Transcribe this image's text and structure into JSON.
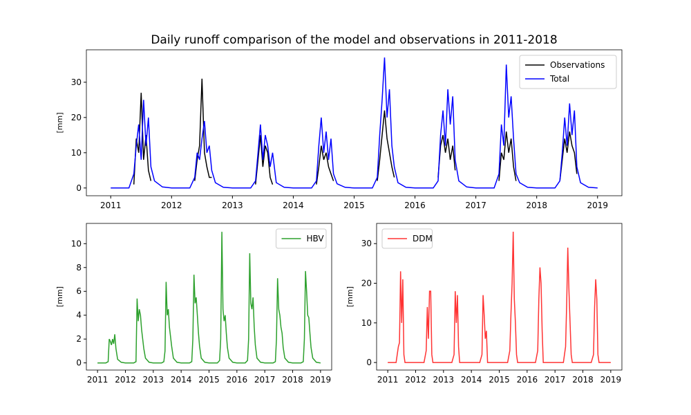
{
  "chart_data": [
    {
      "type": "line",
      "title": "Daily runoff comparison of the model and observations in 2011-2018",
      "ylabel": "[mm]",
      "x": [
        2011,
        2011.3,
        2011.38,
        2011.42,
        2011.46,
        2011.5,
        2011.54,
        2011.58,
        2011.62,
        2011.66,
        2011.72,
        2011.85,
        2012,
        2012.3,
        2012.38,
        2012.42,
        2012.46,
        2012.5,
        2012.54,
        2012.58,
        2012.62,
        2012.66,
        2012.72,
        2012.85,
        2013,
        2013.3,
        2013.38,
        2013.42,
        2013.46,
        2013.5,
        2013.54,
        2013.58,
        2013.62,
        2013.66,
        2013.72,
        2013.85,
        2014,
        2014.3,
        2014.38,
        2014.42,
        2014.46,
        2014.5,
        2014.54,
        2014.58,
        2014.62,
        2014.66,
        2014.72,
        2014.85,
        2015,
        2015.3,
        2015.38,
        2015.42,
        2015.46,
        2015.5,
        2015.54,
        2015.58,
        2015.62,
        2015.66,
        2015.72,
        2015.85,
        2016,
        2016.3,
        2016.38,
        2016.42,
        2016.46,
        2016.5,
        2016.54,
        2016.58,
        2016.62,
        2016.66,
        2016.72,
        2016.85,
        2017,
        2017.3,
        2017.38,
        2017.42,
        2017.46,
        2017.5,
        2017.54,
        2017.58,
        2017.62,
        2017.66,
        2017.72,
        2017.85,
        2018,
        2018.3,
        2018.38,
        2018.42,
        2018.46,
        2018.5,
        2018.54,
        2018.58,
        2018.62,
        2018.66,
        2018.72,
        2018.85,
        2019
      ],
      "series": [
        {
          "name": "Observations",
          "color": "#000000",
          "values": [
            null,
            null,
            1,
            14,
            10,
            27,
            8,
            15,
            5,
            2,
            null,
            null,
            null,
            null,
            2,
            8,
            12,
            31,
            10,
            6,
            3,
            3,
            null,
            null,
            null,
            null,
            1,
            8,
            15,
            6,
            12,
            10,
            3,
            1,
            null,
            null,
            null,
            null,
            1,
            6,
            12,
            8,
            10,
            6,
            4,
            2,
            null,
            null,
            null,
            null,
            2,
            8,
            15,
            22,
            14,
            10,
            6,
            3,
            null,
            null,
            null,
            null,
            3,
            12,
            15,
            10,
            14,
            8,
            12,
            5,
            null,
            null,
            null,
            null,
            2,
            10,
            8,
            16,
            10,
            14,
            6,
            2,
            null,
            null,
            null,
            null,
            2,
            8,
            14,
            10,
            16,
            12,
            10,
            4,
            null,
            null,
            null
          ]
        },
        {
          "name": "Total",
          "color": "#0000ff",
          "values": [
            0,
            0,
            4,
            12,
            18,
            8,
            25,
            12,
            20,
            6,
            2,
            0.3,
            0,
            0,
            3,
            10,
            8,
            14,
            19,
            10,
            12,
            5,
            1.5,
            0.2,
            0,
            0,
            2,
            10,
            18,
            8,
            15,
            12,
            6,
            10,
            1.5,
            0.2,
            0,
            0,
            2,
            12,
            20,
            10,
            16,
            8,
            14,
            4,
            1.2,
            0.2,
            0,
            0,
            3,
            15,
            25,
            37,
            20,
            28,
            12,
            6,
            1.5,
            0.2,
            0,
            0,
            2,
            15,
            22,
            12,
            28,
            18,
            26,
            8,
            2,
            0.3,
            0,
            0,
            4,
            18,
            12,
            35,
            20,
            26,
            14,
            4,
            1.5,
            0.2,
            0,
            0,
            2,
            10,
            20,
            12,
            24,
            15,
            22,
            6,
            1.5,
            0.2,
            0
          ]
        }
      ],
      "xlim": [
        2010.6,
        2019.4
      ],
      "ylim": [
        -2.2,
        39.2
      ],
      "xticks": [
        2011,
        2012,
        2013,
        2014,
        2015,
        2016,
        2017,
        2018,
        2019
      ],
      "yticks": [
        0,
        10,
        20,
        30
      ],
      "legend": "upper right"
    },
    {
      "type": "line",
      "ylabel": "[mm]",
      "x": [
        2011,
        2011.3,
        2011.38,
        2011.42,
        2011.46,
        2011.5,
        2011.54,
        2011.58,
        2011.62,
        2011.66,
        2011.72,
        2011.85,
        2012,
        2012.3,
        2012.38,
        2012.42,
        2012.46,
        2012.5,
        2012.54,
        2012.58,
        2012.62,
        2012.66,
        2012.72,
        2012.85,
        2013,
        2013.3,
        2013.38,
        2013.42,
        2013.46,
        2013.5,
        2013.54,
        2013.58,
        2013.62,
        2013.66,
        2013.72,
        2013.85,
        2014,
        2014.3,
        2014.38,
        2014.42,
        2014.46,
        2014.5,
        2014.54,
        2014.58,
        2014.62,
        2014.66,
        2014.72,
        2014.85,
        2015,
        2015.3,
        2015.38,
        2015.42,
        2015.46,
        2015.5,
        2015.54,
        2015.58,
        2015.62,
        2015.66,
        2015.72,
        2015.85,
        2016,
        2016.3,
        2016.38,
        2016.42,
        2016.46,
        2016.5,
        2016.54,
        2016.58,
        2016.62,
        2016.66,
        2016.72,
        2016.85,
        2017,
        2017.3,
        2017.38,
        2017.42,
        2017.46,
        2017.5,
        2017.54,
        2017.58,
        2017.62,
        2017.66,
        2017.72,
        2017.85,
        2018,
        2018.3,
        2018.38,
        2018.42,
        2018.46,
        2018.5,
        2018.54,
        2018.58,
        2018.62,
        2018.66,
        2018.72,
        2018.85,
        2019
      ],
      "series": [
        {
          "name": "HBV",
          "color": "#2ca02c",
          "values": [
            0,
            0,
            0.1,
            2,
            1.8,
            1.5,
            2,
            1.6,
            2.4,
            1.2,
            0.3,
            0.05,
            0,
            0,
            0.1,
            5.4,
            3.5,
            4.5,
            4,
            2.8,
            2,
            1.2,
            0.4,
            0.05,
            0,
            0,
            0.1,
            1,
            6.8,
            4,
            4.5,
            3,
            2.2,
            1.4,
            0.4,
            0.05,
            0,
            0,
            0.1,
            2,
            7.4,
            5,
            5.5,
            4,
            2.5,
            1.4,
            0.4,
            0.05,
            0,
            0,
            0.2,
            2,
            11,
            4.5,
            3.5,
            4,
            2.5,
            1.3,
            0.4,
            0.05,
            0,
            0,
            0.2,
            2,
            9.2,
            5,
            4.5,
            5.5,
            3,
            1.5,
            0.4,
            0.05,
            0,
            0,
            0.1,
            2,
            7.1,
            4.5,
            4,
            3,
            2.5,
            1.3,
            0.4,
            0.05,
            0,
            0,
            0.1,
            2,
            7.7,
            6,
            4,
            3.8,
            2.5,
            1.3,
            0.4,
            0.05,
            0
          ]
        }
      ],
      "xlim": [
        2010.6,
        2019.4
      ],
      "ylim": [
        -0.6,
        11.7
      ],
      "xticks": [
        2011,
        2012,
        2013,
        2014,
        2015,
        2016,
        2017,
        2018,
        2019
      ],
      "yticks": [
        0,
        2,
        4,
        6,
        8,
        10
      ],
      "legend": "upper right"
    },
    {
      "type": "line",
      "ylabel": "[mm]",
      "x": [
        2011,
        2011.3,
        2011.38,
        2011.42,
        2011.46,
        2011.5,
        2011.54,
        2011.58,
        2011.62,
        2011.66,
        2011.72,
        2011.85,
        2012,
        2012.3,
        2012.38,
        2012.42,
        2012.46,
        2012.5,
        2012.54,
        2012.58,
        2012.62,
        2012.66,
        2012.72,
        2012.85,
        2013,
        2013.3,
        2013.38,
        2013.42,
        2013.46,
        2013.5,
        2013.54,
        2013.58,
        2013.62,
        2013.66,
        2013.72,
        2013.85,
        2014,
        2014.3,
        2014.38,
        2014.42,
        2014.46,
        2014.5,
        2014.54,
        2014.58,
        2014.62,
        2014.66,
        2014.72,
        2014.85,
        2015,
        2015.3,
        2015.38,
        2015.42,
        2015.46,
        2015.5,
        2015.54,
        2015.58,
        2015.62,
        2015.66,
        2015.72,
        2015.85,
        2016,
        2016.3,
        2016.38,
        2016.42,
        2016.46,
        2016.5,
        2016.54,
        2016.58,
        2016.62,
        2016.66,
        2016.72,
        2016.85,
        2017,
        2017.3,
        2017.38,
        2017.42,
        2017.46,
        2017.5,
        2017.54,
        2017.58,
        2017.62,
        2017.66,
        2017.72,
        2017.85,
        2018,
        2018.3,
        2018.38,
        2018.42,
        2018.46,
        2018.5,
        2018.54,
        2018.58,
        2018.62,
        2018.66,
        2018.72,
        2018.85,
        2019
      ],
      "series": [
        {
          "name": "DDM",
          "color": "#ff3333",
          "values": [
            0,
            0,
            4,
            5,
            23,
            10,
            21,
            2,
            0,
            0,
            0,
            0,
            0,
            0,
            3,
            14,
            6,
            18,
            18,
            2,
            0,
            0,
            0,
            0,
            0,
            0,
            2,
            18,
            10,
            17,
            4,
            0,
            0,
            0,
            0,
            0,
            0,
            0,
            2,
            17,
            12,
            6,
            8,
            0,
            0,
            0,
            0,
            0,
            0,
            0,
            3,
            12,
            20,
            33,
            16,
            10,
            2,
            0,
            0,
            0,
            0,
            0,
            3,
            16,
            24,
            20,
            8,
            0,
            0,
            0,
            0,
            0,
            0,
            0,
            4,
            15,
            29,
            18,
            10,
            2,
            0,
            0,
            0,
            0,
            0,
            0,
            2,
            14,
            21,
            16,
            2,
            0,
            0,
            0,
            0,
            0,
            0
          ]
        }
      ],
      "xlim": [
        2010.6,
        2019.4
      ],
      "ylim": [
        -1.9,
        35.1
      ],
      "xticks": [
        2011,
        2012,
        2013,
        2014,
        2015,
        2016,
        2017,
        2018,
        2019
      ],
      "yticks": [
        0,
        10,
        20,
        30
      ],
      "legend": "upper left"
    }
  ]
}
